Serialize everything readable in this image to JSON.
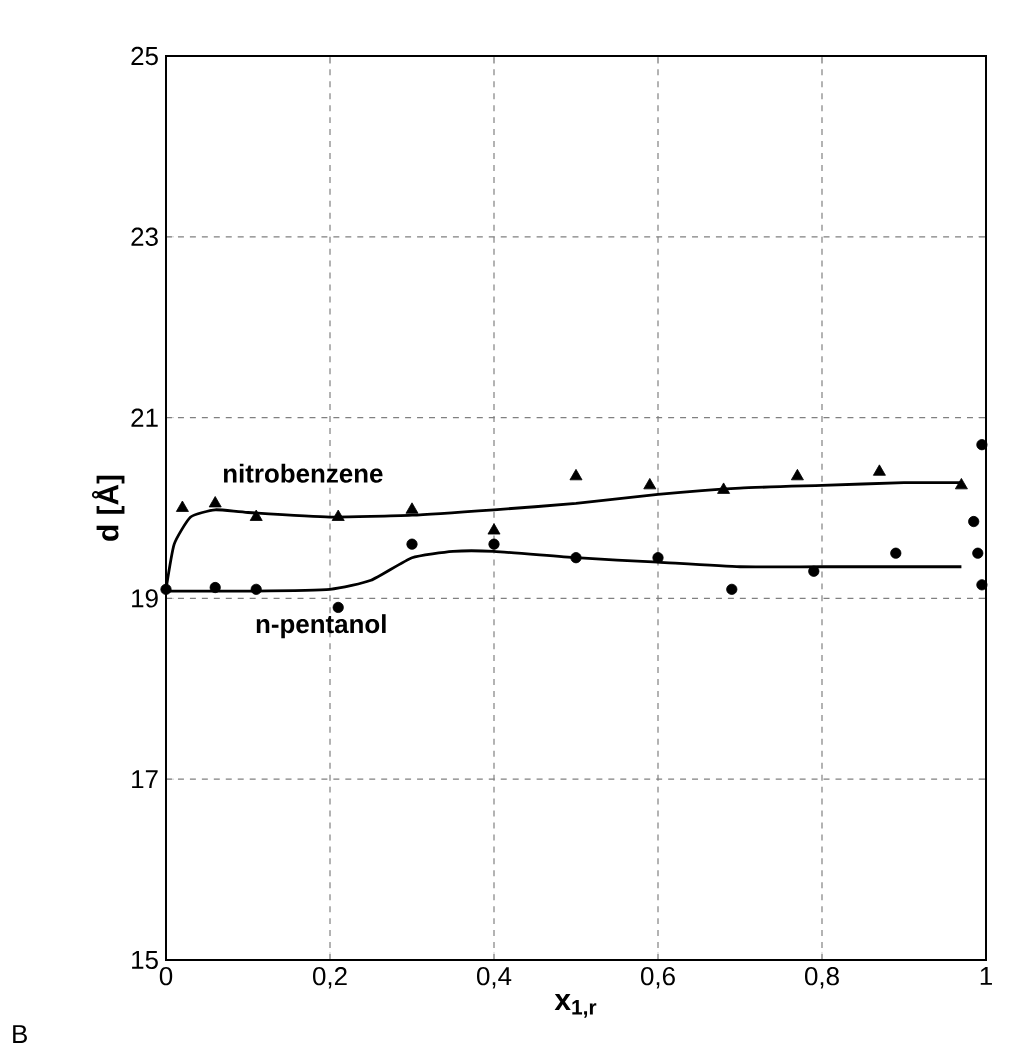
{
  "chart_data": {
    "type": "scatter",
    "xlabel": "x$_{1,r}$",
    "ylabel": "d  [Å]",
    "xlim": [
      0,
      1
    ],
    "ylim": [
      15,
      25
    ],
    "xticks": [
      0,
      {
        "value": 0.2,
        "label": "0,2"
      },
      {
        "value": 0.4,
        "label": "0,4"
      },
      {
        "value": 0.6,
        "label": "0,6"
      },
      {
        "value": 0.8,
        "label": "0,8"
      },
      1
    ],
    "yticks": [
      15,
      17,
      19,
      21,
      23,
      25
    ],
    "grid": true,
    "series": [
      {
        "marker": "triangle",
        "color": "#000000",
        "x": [
          0.02,
          0.06,
          0.11,
          0.21,
          0.3,
          0.4,
          0.5,
          0.59,
          0.68,
          0.77,
          0.87,
          0.97
        ],
        "values": [
          20.0,
          20.05,
          19.9,
          19.9,
          19.98,
          19.75,
          20.35,
          20.25,
          20.2,
          20.35,
          20.4,
          20.25
        ]
      },
      {
        "marker": "circle",
        "color": "#000000",
        "x": [
          0,
          0.06,
          0.11,
          0.21,
          0.3,
          0.4,
          0.5,
          0.6,
          0.69,
          0.79,
          0.89,
          0.985,
          0.99,
          0.995,
          0.995
        ],
        "values": [
          19.1,
          19.12,
          19.1,
          18.9,
          19.6,
          19.6,
          19.45,
          19.45,
          19.1,
          19.3,
          19.5,
          19.85,
          19.5,
          19.15,
          20.7
        ]
      },
      {
        "type": "line",
        "name": "nitrobenzene",
        "marker": "none",
        "line_style": "solid",
        "color": "#000000",
        "x": [
          0,
          0.01,
          0.03,
          0.06,
          0.1,
          0.2,
          0.3,
          0.4,
          0.5,
          0.6,
          0.7,
          0.8,
          0.9,
          0.97
        ],
        "values": [
          19.1,
          19.6,
          19.9,
          19.98,
          19.95,
          19.9,
          19.92,
          19.98,
          20.05,
          20.15,
          20.22,
          20.25,
          20.28,
          20.28
        ]
      },
      {
        "type": "line",
        "name": "n-pentanol",
        "marker": "none",
        "line_style": "solid",
        "color": "#000000",
        "x": [
          0,
          0.1,
          0.2,
          0.25,
          0.3,
          0.35,
          0.4,
          0.5,
          0.6,
          0.7,
          0.8,
          0.97
        ],
        "values": [
          19.08,
          19.08,
          19.1,
          19.2,
          19.45,
          19.52,
          19.52,
          19.45,
          19.4,
          19.35,
          19.35,
          19.35
        ]
      }
    ],
    "annotations": [
      "B"
    ]
  }
}
